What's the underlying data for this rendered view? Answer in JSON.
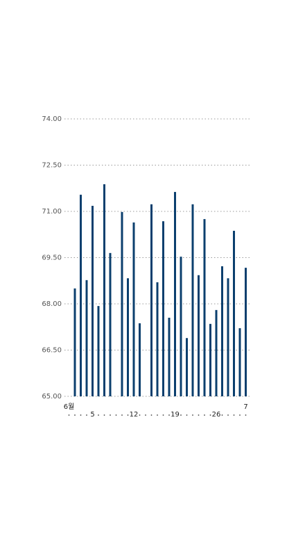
{
  "chart_data": {
    "type": "bar",
    "categories": [
      "6월",
      null,
      null,
      null,
      "5",
      null,
      null,
      null,
      null,
      null,
      null,
      "12",
      null,
      null,
      null,
      null,
      null,
      null,
      "19",
      null,
      null,
      null,
      null,
      null,
      null,
      "26",
      null,
      null,
      null,
      null,
      "7"
    ],
    "values": [
      null,
      68.5,
      71.54,
      68.77,
      71.18,
      67.93,
      71.88,
      69.65,
      null,
      70.98,
      68.83,
      70.64,
      67.37,
      null,
      71.23,
      68.7,
      70.68,
      67.55,
      71.63,
      69.53,
      66.89,
      71.23,
      68.93,
      70.75,
      67.35,
      67.8,
      69.22,
      68.83,
      70.37,
      67.21,
      69.17
    ],
    "color": "#0b3f6e",
    "ylim": [
      65,
      74
    ],
    "yticks": [
      {
        "value": 65,
        "label": "65.00"
      },
      {
        "value": 66.5,
        "label": "66.50"
      },
      {
        "value": 68,
        "label": "68.00"
      },
      {
        "value": 69.5,
        "label": "69.50"
      },
      {
        "value": 71,
        "label": "71.00"
      },
      {
        "value": 72.5,
        "label": "72.50"
      },
      {
        "value": 74,
        "label": "74.00"
      }
    ],
    "grid": true
  }
}
